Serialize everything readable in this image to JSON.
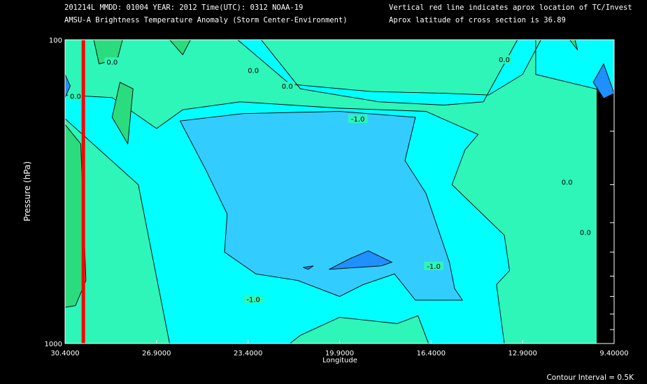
{
  "header": {
    "line1_left": "201214L  MMDD: 01004 YEAR: 2012 Time(UTC): 0312 NOAA-19",
    "line2_left": "AMSU-A Brightness Temperature Anomaly (Storm Center-Environment)",
    "line1_right": "Vertical red line indicates aprox location of TC/Invest",
    "line2_right": "Aprox latitude of cross section is 36.89"
  },
  "footer": {
    "contour_interval": "Contour Interval = 0.5K"
  },
  "colors": {
    "background": "#000000",
    "fill_zero_to_neg_half": "#2ef5b8",
    "fill_neg_half_to_neg_one": "#00ffff",
    "fill_neg_one_to_neg_one_half": "#33ccff",
    "fill_below_neg_one_half": "#1e90ff",
    "fill_above_zero": "#2bdc7f",
    "storm_line": "#ff0000",
    "contour_line": "#000000"
  },
  "chart_data": {
    "type": "contour",
    "xlabel": "Longitude",
    "ylabel": "Pressure (hPa)",
    "xlim": [
      30.4,
      9.4
    ],
    "ylim": [
      1000,
      100
    ],
    "y_scale": "log",
    "x_tick_labels": [
      "30.4000",
      "26.9000",
      "23.4000",
      "19.9000",
      "16.4000",
      "12.9000",
      "9.40000"
    ],
    "x_ticks": [
      30.4,
      26.9,
      23.4,
      19.9,
      16.4,
      12.9,
      9.4
    ],
    "y_tick_labels": [
      "1000",
      "100"
    ],
    "y_ticks": [
      1000,
      100
    ],
    "y_minor_ticks": [
      200,
      300,
      400,
      500,
      600,
      700,
      800,
      900
    ],
    "storm_longitude": 29.7,
    "contour_levels": [
      0.0,
      -0.5,
      -1.0,
      -1.5
    ],
    "contour_labels": [
      {
        "text": "0.0",
        "x": 28.6,
        "p": 118
      },
      {
        "text": "0.0",
        "x": 30.0,
        "p": 153
      },
      {
        "text": "0.0",
        "x": 23.2,
        "p": 126
      },
      {
        "text": "0.0",
        "x": 21.9,
        "p": 142
      },
      {
        "text": "0.0",
        "x": 13.6,
        "p": 116
      },
      {
        "text": "0.0",
        "x": 11.2,
        "p": 294
      },
      {
        "text": "0.0",
        "x": 10.5,
        "p": 430
      },
      {
        "text": "-1.0",
        "x": 19.2,
        "p": 182
      },
      {
        "text": "-1.0",
        "x": 16.3,
        "p": 555
      },
      {
        "text": "-1.0",
        "x": 23.2,
        "p": 715
      }
    ],
    "regions": [
      {
        "level": "neg_half_to_neg_one",
        "points": [
          [
            23.8,
            100
          ],
          [
            22.9,
            100
          ],
          [
            21.4,
            145
          ],
          [
            18.4,
            160
          ],
          [
            15.9,
            164
          ],
          [
            14.4,
            160
          ],
          [
            13.1,
            100
          ],
          [
            12.4,
            100
          ],
          [
            12.4,
            130
          ],
          [
            9.4,
            150
          ],
          [
            9.4,
            100
          ],
          [
            12.2,
            100
          ],
          [
            12.9,
            130
          ],
          [
            14.2,
            152
          ],
          [
            15.9,
            150
          ],
          [
            18.7,
            148
          ],
          [
            21.8,
            140
          ]
        ]
      },
      {
        "level": "neg_half_to_neg_one",
        "points": [
          [
            26.9,
            196
          ],
          [
            28.6,
            155
          ],
          [
            30.4,
            152
          ],
          [
            30.4,
            182
          ],
          [
            27.6,
            300
          ],
          [
            26.4,
            1000
          ],
          [
            21.8,
            1000
          ],
          [
            21.4,
            940
          ],
          [
            19.9,
            820
          ],
          [
            17.7,
            860
          ],
          [
            16.9,
            810
          ],
          [
            16.5,
            1000
          ],
          [
            13.6,
            1000
          ],
          [
            13.9,
            640
          ],
          [
            13.4,
            575
          ],
          [
            13.6,
            440
          ],
          [
            15.6,
            300
          ],
          [
            15.1,
            230
          ],
          [
            14.6,
            205
          ],
          [
            16.6,
            172
          ],
          [
            19.9,
            168
          ],
          [
            23.7,
            160
          ],
          [
            25.9,
            170
          ]
        ]
      },
      {
        "level": "neg_one_to_neg_one_half",
        "points": [
          [
            26.0,
            185
          ],
          [
            23.6,
            175
          ],
          [
            19.9,
            172
          ],
          [
            17.0,
            180
          ],
          [
            17.4,
            250
          ],
          [
            16.6,
            320
          ],
          [
            15.7,
            540
          ],
          [
            15.5,
            660
          ],
          [
            15.2,
            720
          ],
          [
            17.0,
            720
          ],
          [
            17.8,
            590
          ],
          [
            19.0,
            640
          ],
          [
            19.9,
            700
          ],
          [
            21.5,
            620
          ],
          [
            23.1,
            590
          ],
          [
            24.3,
            500
          ],
          [
            24.2,
            375
          ],
          [
            25.0,
            270
          ]
        ]
      },
      {
        "level": "below_neg_one_half",
        "points": [
          [
            20.3,
            570
          ],
          [
            18.3,
            555
          ],
          [
            17.9,
            540
          ],
          [
            18.8,
            495
          ],
          [
            19.5,
            525
          ]
        ]
      },
      {
        "level": "below_neg_one_half",
        "points": [
          [
            21.3,
            562
          ],
          [
            21.1,
            570
          ],
          [
            20.9,
            555
          ]
        ]
      },
      {
        "level": "below_neg_one_half",
        "points": [
          [
            30.4,
            130
          ],
          [
            30.2,
            142
          ],
          [
            30.4,
            155
          ]
        ]
      },
      {
        "level": "below_neg_one_half",
        "points": [
          [
            9.8,
            120
          ],
          [
            10.2,
            138
          ],
          [
            9.8,
            156
          ],
          [
            9.4,
            150
          ]
        ]
      },
      {
        "level": "above_zero",
        "points": [
          [
            29.3,
            100
          ],
          [
            28.2,
            100
          ],
          [
            28.4,
            116
          ],
          [
            29.1,
            120
          ]
        ]
      },
      {
        "level": "above_zero",
        "points": [
          [
            28.3,
            138
          ],
          [
            27.8,
            145
          ],
          [
            28.0,
            220
          ],
          [
            28.6,
            180
          ]
        ]
      },
      {
        "level": "above_zero",
        "points": [
          [
            26.4,
            100
          ],
          [
            25.6,
            100
          ],
          [
            25.9,
            112
          ]
        ]
      },
      {
        "level": "above_zero",
        "points": [
          [
            11.1,
            100
          ],
          [
            10.9,
            100
          ],
          [
            10.8,
            108
          ]
        ]
      },
      {
        "level": "above_zero",
        "points": [
          [
            30.4,
            190
          ],
          [
            29.8,
            220
          ],
          [
            29.6,
            620
          ],
          [
            30.0,
            750
          ],
          [
            30.4,
            760
          ]
        ]
      }
    ]
  }
}
